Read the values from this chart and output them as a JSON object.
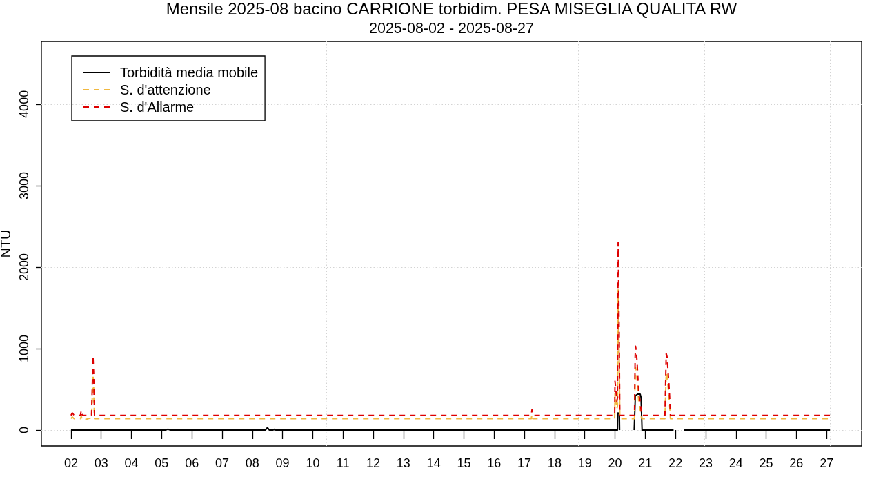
{
  "chart_data": {
    "type": "line",
    "title": "Mensile 2025-08 bacino CARRIONE torbidim. PESA MISEGLIA QUALITA RW",
    "subtitle": "2025-08-02 - 2025-08-27",
    "ylabel": "NTU",
    "xlim": [
      "2025-08-01T00:30",
      "2025-08-28T03:50"
    ],
    "ylim": [
      -195,
      4770
    ],
    "xticks": [
      {
        "value": "2025-08-02",
        "label": "02"
      },
      {
        "value": "2025-08-03",
        "label": "03"
      },
      {
        "value": "2025-08-04",
        "label": "04"
      },
      {
        "value": "2025-08-05",
        "label": "05"
      },
      {
        "value": "2025-08-06",
        "label": "06"
      },
      {
        "value": "2025-08-07",
        "label": "07"
      },
      {
        "value": "2025-08-08",
        "label": "08"
      },
      {
        "value": "2025-08-09",
        "label": "09"
      },
      {
        "value": "2025-08-10",
        "label": "10"
      },
      {
        "value": "2025-08-11",
        "label": "11"
      },
      {
        "value": "2025-08-12",
        "label": "12"
      },
      {
        "value": "2025-08-13",
        "label": "13"
      },
      {
        "value": "2025-08-14",
        "label": "14"
      },
      {
        "value": "2025-08-15",
        "label": "15"
      },
      {
        "value": "2025-08-16",
        "label": "16"
      },
      {
        "value": "2025-08-17",
        "label": "17"
      },
      {
        "value": "2025-08-18",
        "label": "18"
      },
      {
        "value": "2025-08-19",
        "label": "19"
      },
      {
        "value": "2025-08-20",
        "label": "20"
      },
      {
        "value": "2025-08-21",
        "label": "21"
      },
      {
        "value": "2025-08-22",
        "label": "22"
      },
      {
        "value": "2025-08-23",
        "label": "23"
      },
      {
        "value": "2025-08-24",
        "label": "24"
      },
      {
        "value": "2025-08-25",
        "label": "25"
      },
      {
        "value": "2025-08-26",
        "label": "26"
      },
      {
        "value": "2025-08-27",
        "label": "27"
      }
    ],
    "yticks": [
      0,
      1000,
      2000,
      3000,
      4000
    ],
    "grid": "y",
    "legend": "top left",
    "marker": "none",
    "ref_lines": [
      {
        "axis": "x",
        "value": "2025-08-02T03:00",
        "color": "#d3d3d3",
        "line_style": "dotted"
      },
      {
        "axis": "x",
        "value": "2025-08-06T07:00",
        "color": "#d3d3d3",
        "line_style": "dotted"
      },
      {
        "axis": "x",
        "value": "2025-08-10T11:00",
        "color": "#d3d3d3",
        "line_style": "dotted"
      },
      {
        "axis": "x",
        "value": "2025-08-14T15:00",
        "color": "#d3d3d3",
        "line_style": "dotted"
      },
      {
        "axis": "x",
        "value": "2025-08-18T19:00",
        "color": "#d3d3d3",
        "line_style": "dotted"
      },
      {
        "axis": "x",
        "value": "2025-08-22T23:00",
        "color": "#d3d3d3",
        "line_style": "dotted"
      },
      {
        "axis": "x",
        "value": "2025-08-27T03:00",
        "color": "#d3d3d3",
        "line_style": "dotted"
      }
    ],
    "series": [
      {
        "name": "Torbidità media mobile",
        "color": "#000000",
        "line_style": "solid",
        "x": [
          "2025-08-02T00:00",
          "2025-08-05T03:00",
          "2025-08-05T05:00",
          "2025-08-05T07:00",
          "2025-08-08T10:30",
          "2025-08-08T12:00",
          "2025-08-08T13:30",
          "2025-08-08T16:30",
          "2025-08-08T17:30",
          "2025-08-08T18:30",
          "2025-08-20T02:00",
          "2025-08-20T02:20",
          "2025-08-20T03:30",
          "2025-08-20T03:40",
          "2025-08-20T04:00",
          "2025-08-20T15:15",
          "2025-08-20T16:10",
          "2025-08-20T18:00",
          "2025-08-20T20:00",
          "2025-08-20T20:40",
          "2025-08-20T21:30",
          "2025-08-20T22:00",
          "2025-08-21T22:30",
          "2025-08-21T23:00",
          "2025-08-22T07:00",
          "2025-08-27T02:40"
        ],
        "values": [
          0,
          0,
          10,
          0,
          0,
          30,
          0,
          0,
          10,
          0,
          0,
          210,
          200,
          0,
          null,
          0,
          420,
          440,
          440,
          400,
          0,
          0,
          0,
          null,
          0,
          0
        ]
      },
      {
        "name": "S. d'attenzione",
        "color": "#f0b840",
        "line_style": "dashed",
        "x": [
          "2025-08-02T00:00",
          "2025-08-02T01:00",
          "2025-08-02T02:30",
          "2025-08-02T07:30",
          "2025-08-02T08:10",
          "2025-08-02T09:00",
          "2025-08-02T16:20",
          "2025-08-02T17:00",
          "2025-08-02T17:30",
          "2025-08-02T18:00",
          "2025-08-02T18:40",
          "2025-08-17T05:30",
          "2025-08-17T06:05",
          "2025-08-17T06:40",
          "2025-08-19T23:45",
          "2025-08-20T00:00",
          "2025-08-20T00:40",
          "2025-08-20T01:30",
          "2025-08-20T02:00",
          "2025-08-20T02:30",
          "2025-08-20T03:20",
          "2025-08-20T03:50",
          "2025-08-20T15:30",
          "2025-08-20T16:00",
          "2025-08-20T16:20",
          "2025-08-20T17:00",
          "2025-08-20T17:40",
          "2025-08-20T18:20",
          "2025-08-20T19:00",
          "2025-08-20T19:40",
          "2025-08-20T20:20",
          "2025-08-20T21:00",
          "2025-08-20T21:20",
          "2025-08-21T15:40",
          "2025-08-21T16:40",
          "2025-08-21T17:20",
          "2025-08-21T18:00",
          "2025-08-21T18:40",
          "2025-08-21T19:20",
          "2025-08-21T20:00",
          "2025-08-27T02:40"
        ],
        "values": [
          140,
          160,
          140,
          140,
          170,
          120,
          150,
          450,
          680,
          520,
          140,
          140,
          190,
          140,
          140,
          450,
          380,
          260,
          300,
          1720,
          900,
          140,
          140,
          680,
          770,
          720,
          600,
          450,
          320,
          280,
          220,
          150,
          140,
          140,
          700,
          680,
          560,
          450,
          320,
          140,
          140
        ]
      },
      {
        "name": "S. d'Allarme",
        "color": "#dd0000",
        "line_style": "dashed",
        "x": [
          "2025-08-02T00:00",
          "2025-08-02T01:00",
          "2025-08-02T02:30",
          "2025-08-02T07:30",
          "2025-08-02T08:10",
          "2025-08-02T09:00",
          "2025-08-02T16:20",
          "2025-08-02T17:00",
          "2025-08-02T17:30",
          "2025-08-02T18:00",
          "2025-08-02T18:40",
          "2025-08-17T05:30",
          "2025-08-17T06:05",
          "2025-08-17T06:40",
          "2025-08-19T23:45",
          "2025-08-20T00:00",
          "2025-08-20T00:40",
          "2025-08-20T01:30",
          "2025-08-20T02:00",
          "2025-08-20T02:30",
          "2025-08-20T03:20",
          "2025-08-20T03:50",
          "2025-08-20T15:30",
          "2025-08-20T16:00",
          "2025-08-20T16:20",
          "2025-08-20T17:00",
          "2025-08-20T17:40",
          "2025-08-20T18:20",
          "2025-08-20T19:00",
          "2025-08-20T19:40",
          "2025-08-20T20:20",
          "2025-08-20T21:00",
          "2025-08-20T21:20",
          "2025-08-21T15:40",
          "2025-08-21T16:40",
          "2025-08-21T17:20",
          "2025-08-21T18:00",
          "2025-08-21T18:40",
          "2025-08-21T19:20",
          "2025-08-21T20:00",
          "2025-08-27T02:40"
        ],
        "values": [
          180,
          210,
          180,
          180,
          240,
          180,
          180,
          600,
          910,
          700,
          180,
          180,
          250,
          180,
          180,
          600,
          500,
          350,
          400,
          2300,
          1200,
          180,
          180,
          900,
          1030,
          960,
          800,
          600,
          430,
          380,
          300,
          200,
          180,
          180,
          940,
          900,
          750,
          600,
          420,
          180,
          180
        ]
      }
    ]
  }
}
